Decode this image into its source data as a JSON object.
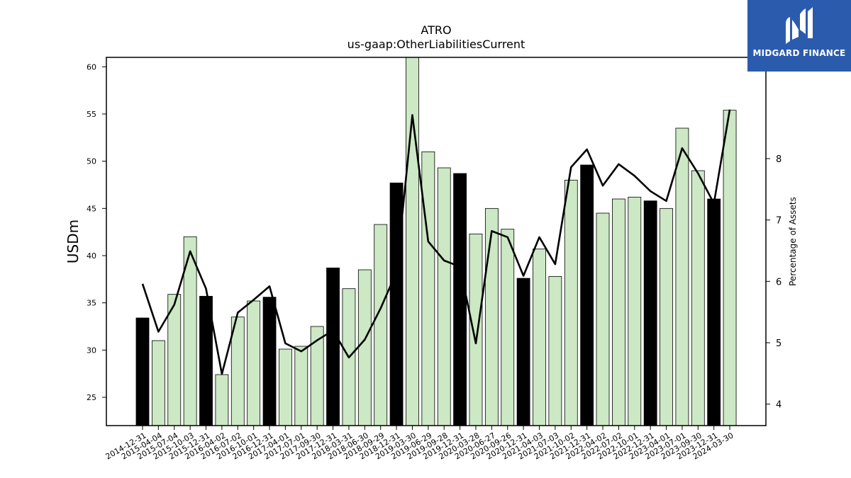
{
  "logo": {
    "text": "MIDGARD FINANCE",
    "background": "#2b5bad"
  },
  "chart_data": {
    "type": "bar",
    "title": "ATRO",
    "subtitle": "us-gaap:OtherLiabilitiesCurrent",
    "ylabel": "USDm",
    "y2label": "Percentage of Assets",
    "ylim": [
      22,
      61
    ],
    "y2lim": [
      3.65,
      9.65
    ],
    "yticks": [
      25,
      30,
      35,
      40,
      45,
      50,
      55,
      60
    ],
    "y2ticks": [
      4,
      5,
      6,
      7,
      8
    ],
    "bar_colors": {
      "annual": "#000000",
      "quarterly": "#cce8c4"
    },
    "line_color": "#000000",
    "categories": [
      "2014-12-31",
      "2015-04-04",
      "2015-07-04",
      "2015-10-03",
      "2015-12-31",
      "2016-04-02",
      "2016-07-02",
      "2016-10-01",
      "2016-12-31",
      "2017-04-01",
      "2017-07-01",
      "2017-09-30",
      "2017-12-31",
      "2018-03-31",
      "2018-06-30",
      "2018-09-29",
      "2018-12-31",
      "2019-03-30",
      "2019-06-29",
      "2019-09-28",
      "2019-12-31",
      "2020-03-28",
      "2020-06-27",
      "2020-09-26",
      "2020-12-31",
      "2021-04-03",
      "2021-07-03",
      "2021-10-02",
      "2021-12-31",
      "2022-04-02",
      "2022-07-02",
      "2022-10-01",
      "2022-12-31",
      "2023-04-01",
      "2023-07-01",
      "2023-09-30",
      "2023-12-31",
      "2024-03-30"
    ],
    "series": [
      {
        "kind": "bar",
        "values": [
          33.4,
          31.0,
          35.9,
          42.0,
          35.7,
          27.4,
          33.5,
          35.2,
          35.6,
          30.1,
          30.4,
          32.5,
          38.7,
          36.5,
          38.5,
          43.3,
          47.7,
          61.0,
          51.0,
          49.3,
          48.7,
          42.3,
          45.0,
          42.8,
          37.6,
          40.7,
          37.8,
          48.0,
          49.6,
          44.5,
          46.0,
          46.2,
          45.8,
          45.0,
          53.5,
          49.0,
          46.0,
          55.4
        ],
        "annual_flags": [
          1,
          0,
          0,
          0,
          1,
          0,
          0,
          0,
          1,
          0,
          0,
          0,
          1,
          0,
          0,
          0,
          1,
          0,
          0,
          0,
          1,
          0,
          0,
          0,
          1,
          0,
          0,
          0,
          1,
          0,
          0,
          0,
          1,
          0,
          0,
          0,
          1,
          0
        ]
      },
      {
        "kind": "line",
        "axis": "right",
        "values": [
          5.96,
          5.18,
          5.62,
          6.49,
          5.88,
          4.49,
          5.49,
          5.7,
          5.92,
          4.99,
          4.86,
          5.04,
          5.2,
          4.76,
          5.05,
          5.56,
          6.15,
          8.71,
          6.65,
          6.34,
          6.24,
          4.99,
          6.82,
          6.72,
          6.09,
          6.72,
          6.28,
          7.86,
          8.15,
          7.56,
          7.91,
          7.72,
          7.47,
          7.31,
          8.17,
          7.76,
          7.27,
          8.8
        ]
      }
    ]
  }
}
